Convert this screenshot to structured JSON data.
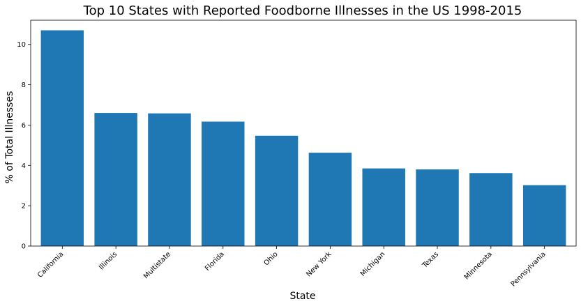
{
  "chart_data": {
    "type": "bar",
    "title": "Top 10 States with Reported Foodborne Illnesses in the US 1998-2015",
    "xlabel": "State",
    "ylabel": "% of Total Illnesses",
    "categories": [
      "California",
      "Illinois",
      "Multistate",
      "Florida",
      "Ohio",
      "New York",
      "Michigan",
      "Texas",
      "Minnesota",
      "Pennsylvania"
    ],
    "values": [
      10.7,
      6.6,
      6.58,
      6.17,
      5.47,
      4.63,
      3.85,
      3.8,
      3.62,
      3.02
    ],
    "ylim": [
      0,
      11.2
    ],
    "yticks": [
      0,
      2,
      4,
      6,
      8,
      10
    ],
    "bar_color": "#1f77b4",
    "grid": false,
    "legend": "none"
  }
}
